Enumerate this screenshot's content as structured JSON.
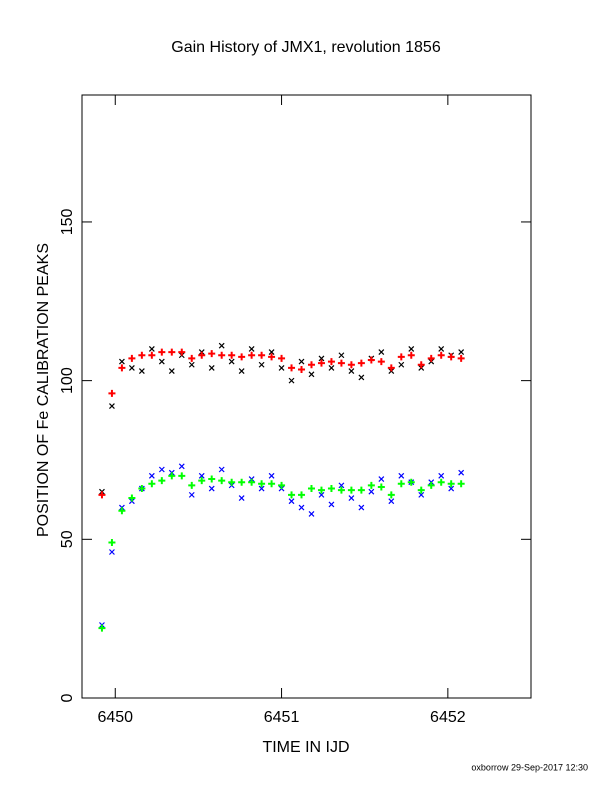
{
  "chart_data": {
    "type": "scatter",
    "title": "Gain History of JMX1, revolution 1856",
    "xlabel": "TIME IN IJD",
    "ylabel": "POSITION OF Fe CALIBRATION PEAKS",
    "footer": "oxborrow 29-Sep-2017 12:30",
    "xlim": [
      6449.8,
      6452.5
    ],
    "xticks": [
      6450,
      6451,
      6452
    ],
    "ylim": [
      0,
      190
    ],
    "yticks": [
      0,
      50,
      100,
      150
    ],
    "x": [
      6449.92,
      6449.98,
      6450.04,
      6450.1,
      6450.16,
      6450.22,
      6450.28,
      6450.34,
      6450.4,
      6450.46,
      6450.52,
      6450.58,
      6450.64,
      6450.7,
      6450.76,
      6450.82,
      6450.88,
      6450.94,
      6451,
      6451.06,
      6451.12,
      6451.18,
      6451.24,
      6451.3,
      6451.36,
      6451.42,
      6451.48,
      6451.54,
      6451.6,
      6451.66,
      6451.72,
      6451.78,
      6451.84,
      6451.9,
      6451.96,
      6452.02,
      6452.08
    ],
    "series": [
      {
        "color": "#000000",
        "marker": "x",
        "values": [
          65,
          92,
          106,
          104,
          103,
          110,
          106,
          103,
          108,
          105,
          109,
          104,
          111,
          106,
          103,
          110,
          105,
          109,
          104,
          100,
          106,
          102,
          107,
          104,
          108,
          103,
          101,
          107,
          109,
          103,
          105,
          110,
          104,
          106,
          110,
          108,
          109
        ]
      },
      {
        "color": "#ff0000",
        "marker": "+",
        "values": [
          64,
          96,
          104,
          107,
          108,
          108,
          109,
          109,
          109,
          107,
          108,
          108.5,
          108,
          108,
          107.5,
          108,
          108,
          107.5,
          107,
          104,
          103.5,
          105,
          105.5,
          106,
          105.5,
          105,
          105.5,
          106.5,
          106,
          104,
          107.5,
          108,
          105,
          107,
          108,
          107.5,
          107
        ]
      },
      {
        "color": "#0000ff",
        "marker": "x",
        "values": [
          23,
          46,
          60,
          62,
          66,
          70,
          72,
          71,
          73,
          64,
          70,
          66,
          72,
          67,
          63,
          69,
          66,
          70,
          66,
          62,
          60,
          58,
          64,
          61,
          67,
          63,
          60,
          65,
          69,
          62,
          70,
          68,
          64,
          68,
          70,
          66,
          71
        ]
      },
      {
        "color": "#00ff00",
        "marker": "+",
        "values": [
          22,
          49,
          59,
          63,
          66,
          67.5,
          68.5,
          70,
          70,
          67,
          68.5,
          69,
          68.5,
          68,
          68,
          68,
          67.5,
          67.5,
          67,
          64,
          64,
          66,
          65.5,
          66,
          65.5,
          65.5,
          65.5,
          67,
          66.5,
          64,
          67.5,
          68,
          65.5,
          67,
          68,
          67.5,
          67.5
        ]
      }
    ]
  }
}
